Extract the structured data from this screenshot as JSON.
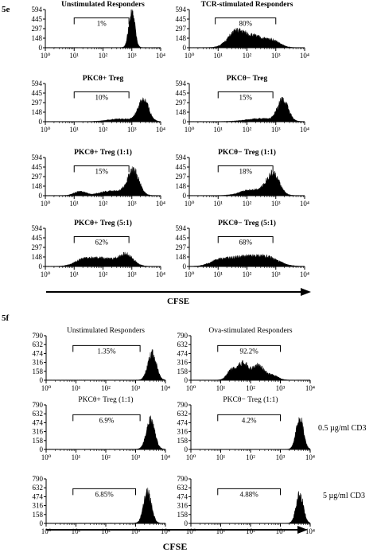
{
  "panel_labels": {
    "e": "5e",
    "f": "5f"
  },
  "axis_labels": {
    "e": "CFSE",
    "f": "CFSE"
  },
  "annotations": {
    "row2": "0.5 µg/ml CD3",
    "row3": "5 µg/ml CD3"
  },
  "chart_data": [
    {
      "id": "e1",
      "type": "histogram",
      "title": "Unstimulated Responders",
      "gate_label": "1%",
      "gate": [
        1,
        2.9
      ],
      "y_ticks": [
        "594",
        "445",
        "297",
        "148",
        "0"
      ],
      "ylim": [
        0,
        594
      ],
      "x_ticks": [
        "10⁰",
        "10¹",
        "10²",
        "10³",
        "10⁴"
      ],
      "xlim": [
        0,
        4
      ],
      "peaks": [
        {
          "center": 3.0,
          "width": 0.1,
          "height": 594
        }
      ],
      "baseline": 4
    },
    {
      "id": "e2",
      "type": "histogram",
      "title": "TCR-stimulated Responders",
      "gate_label": "80%",
      "gate": [
        0.9,
        3.0
      ],
      "y_ticks": [
        "594",
        "445",
        "297",
        "148",
        "0"
      ],
      "ylim": [
        0,
        594
      ],
      "x_ticks": [
        "10⁰",
        "10¹",
        "10²",
        "10³",
        "10⁴"
      ],
      "xlim": [
        0,
        4
      ],
      "peaks": [
        {
          "center": 1.65,
          "width": 0.3,
          "height": 250
        },
        {
          "center": 2.3,
          "width": 0.3,
          "height": 150
        },
        {
          "center": 2.9,
          "width": 0.25,
          "height": 100
        }
      ],
      "baseline": 4
    },
    {
      "id": "e3",
      "type": "histogram",
      "title": "PKCθ+ Treg",
      "gate_label": "10%",
      "gate": [
        1,
        2.9
      ],
      "y_ticks": [
        "594",
        "445",
        "297",
        "148",
        "0"
      ],
      "ylim": [
        0,
        594
      ],
      "x_ticks": [
        "10⁰",
        "10¹",
        "10²",
        "10³",
        "10⁴"
      ],
      "xlim": [
        0,
        4
      ],
      "peaks": [
        {
          "center": 3.4,
          "width": 0.18,
          "height": 345
        },
        {
          "center": 2.6,
          "width": 0.4,
          "height": 40
        }
      ],
      "baseline": 4
    },
    {
      "id": "e4",
      "type": "histogram",
      "title": "PKCθ− Treg",
      "gate_label": "15%",
      "gate": [
        1,
        2.9
      ],
      "y_ticks": [
        "594",
        "445",
        "297",
        "148",
        "0"
      ],
      "ylim": [
        0,
        594
      ],
      "x_ticks": [
        "10⁰",
        "10¹",
        "10²",
        "10³",
        "10⁴"
      ],
      "xlim": [
        0,
        4
      ],
      "peaks": [
        {
          "center": 3.25,
          "width": 0.18,
          "height": 330
        },
        {
          "center": 2.5,
          "width": 0.5,
          "height": 45
        }
      ],
      "baseline": 4
    },
    {
      "id": "e5",
      "type": "histogram",
      "title": "PKCθ+ Treg (1:1)",
      "gate_label": "15%",
      "gate": [
        1,
        2.9
      ],
      "y_ticks": [
        "594",
        "445",
        "297",
        "148",
        "0"
      ],
      "ylim": [
        0,
        594
      ],
      "x_ticks": [
        "10⁰",
        "10¹",
        "10²",
        "10³",
        "10⁴"
      ],
      "xlim": [
        0,
        4
      ],
      "peaks": [
        {
          "center": 3.05,
          "width": 0.2,
          "height": 375
        },
        {
          "center": 2.3,
          "width": 0.4,
          "height": 70
        },
        {
          "center": 1.2,
          "width": 0.2,
          "height": 60
        }
      ],
      "baseline": 4
    },
    {
      "id": "e6",
      "type": "histogram",
      "title": "PKCθ− Treg (1:1)",
      "gate_label": "18%",
      "gate": [
        1,
        2.9
      ],
      "y_ticks": [
        "594",
        "445",
        "297",
        "148",
        "0"
      ],
      "ylim": [
        0,
        594
      ],
      "x_ticks": [
        "10⁰",
        "10¹",
        "10²",
        "10³",
        "10⁴"
      ],
      "xlim": [
        0,
        4
      ],
      "peaks": [
        {
          "center": 2.9,
          "width": 0.22,
          "height": 330
        },
        {
          "center": 2.2,
          "width": 0.4,
          "height": 90
        }
      ],
      "baseline": 4
    },
    {
      "id": "e7",
      "type": "histogram",
      "title": "PKCθ+ Treg (5:1)",
      "gate_label": "62%",
      "gate": [
        1,
        2.9
      ],
      "y_ticks": [
        "594",
        "445",
        "297",
        "148",
        "0"
      ],
      "ylim": [
        0,
        594
      ],
      "x_ticks": [
        "10⁰",
        "10¹",
        "10²",
        "10³",
        "10⁴"
      ],
      "xlim": [
        0,
        4
      ],
      "peaks": [
        {
          "center": 2.8,
          "width": 0.25,
          "height": 175
        },
        {
          "center": 2.0,
          "width": 0.4,
          "height": 120
        },
        {
          "center": 1.3,
          "width": 0.3,
          "height": 90
        }
      ],
      "baseline": 4
    },
    {
      "id": "e8",
      "type": "histogram",
      "title": "PKCθ− Treg (5:1)",
      "gate_label": "68%",
      "gate": [
        1,
        2.9
      ],
      "y_ticks": [
        "594",
        "445",
        "297",
        "148",
        "0"
      ],
      "ylim": [
        0,
        594
      ],
      "x_ticks": [
        "10⁰",
        "10¹",
        "10²",
        "10³",
        "10⁴"
      ],
      "xlim": [
        0,
        4
      ],
      "peaks": [
        {
          "center": 1.8,
          "width": 0.5,
          "height": 140
        },
        {
          "center": 2.7,
          "width": 0.4,
          "height": 125
        },
        {
          "center": 1.0,
          "width": 0.3,
          "height": 70
        }
      ],
      "baseline": 4
    },
    {
      "id": "f1",
      "type": "histogram",
      "title": "Unstimulated Responders",
      "gate_label": "1.35%",
      "gate": [
        0.9,
        3.15
      ],
      "y_ticks": [
        "790",
        "632",
        "474",
        "316",
        "158",
        "0"
      ],
      "ylim": [
        0,
        790
      ],
      "x_ticks": [
        "10⁰",
        "10¹",
        "10²",
        "10³",
        "10⁴"
      ],
      "xlim": [
        0,
        4
      ],
      "peaks": [
        {
          "center": 3.55,
          "width": 0.14,
          "height": 480
        }
      ],
      "baseline": 4
    },
    {
      "id": "f2",
      "type": "histogram",
      "title": "Ova-stimulated Responders",
      "gate_label": "92.2%",
      "gate": [
        0.9,
        3.0
      ],
      "y_ticks": [
        "790",
        "632",
        "474",
        "316",
        "158",
        "0"
      ],
      "ylim": [
        0,
        790
      ],
      "x_ticks": [
        "10⁰",
        "10¹",
        "10²",
        "10³",
        "10⁴"
      ],
      "xlim": [
        0,
        4
      ],
      "peaks": [
        {
          "center": 1.75,
          "width": 0.18,
          "height": 300
        },
        {
          "center": 2.25,
          "width": 0.18,
          "height": 250
        },
        {
          "center": 1.35,
          "width": 0.15,
          "height": 160
        },
        {
          "center": 2.7,
          "width": 0.2,
          "height": 90
        }
      ],
      "baseline": 4
    },
    {
      "id": "f3",
      "type": "histogram",
      "title": "PKCθ+ Treg (1:1)",
      "gate_label": "6.9%",
      "gate": [
        0.9,
        3.15
      ],
      "y_ticks": [
        "790",
        "632",
        "474",
        "316",
        "158",
        "0"
      ],
      "ylim": [
        0,
        790
      ],
      "x_ticks": [
        "10⁰",
        "10¹",
        "10²",
        "10³",
        "10⁴"
      ],
      "xlim": [
        0,
        4
      ],
      "peaks": [
        {
          "center": 3.5,
          "width": 0.14,
          "height": 510
        }
      ],
      "baseline": 5
    },
    {
      "id": "f4",
      "type": "histogram",
      "title": "PKCθ− Treg (1:1)",
      "gate_label": "4.2%",
      "gate": [
        0.9,
        3.0
      ],
      "y_ticks": [
        "790",
        "632",
        "474",
        "316",
        "158",
        "0"
      ],
      "ylim": [
        0,
        790
      ],
      "x_ticks": [
        "10⁰",
        "10¹",
        "10²",
        "10³",
        "10⁴"
      ],
      "xlim": [
        0,
        4
      ],
      "peaks": [
        {
          "center": 3.65,
          "width": 0.12,
          "height": 560
        }
      ],
      "baseline": 4
    },
    {
      "id": "f5",
      "type": "histogram",
      "title": "",
      "gate_label": "6.85%",
      "gate": [
        0.9,
        3.0
      ],
      "y_ticks": [
        "790",
        "632",
        "474",
        "316",
        "158",
        "0"
      ],
      "ylim": [
        0,
        790
      ],
      "x_ticks": [
        "10⁰",
        "10¹",
        "10²",
        "10³",
        "10⁴"
      ],
      "xlim": [
        0,
        4
      ],
      "peaks": [
        {
          "center": 3.4,
          "width": 0.13,
          "height": 550
        }
      ],
      "baseline": 5
    },
    {
      "id": "f6",
      "type": "histogram",
      "title": "",
      "gate_label": "4.88%",
      "gate": [
        0.9,
        3.0
      ],
      "y_ticks": [
        "790",
        "632",
        "474",
        "316",
        "158",
        "0"
      ],
      "ylim": [
        0,
        790
      ],
      "x_ticks": [
        "10⁰",
        "10¹",
        "10²",
        "10³",
        "10⁴"
      ],
      "xlim": [
        0,
        4
      ],
      "peaks": [
        {
          "center": 3.65,
          "width": 0.12,
          "height": 510
        }
      ],
      "baseline": 4
    }
  ]
}
